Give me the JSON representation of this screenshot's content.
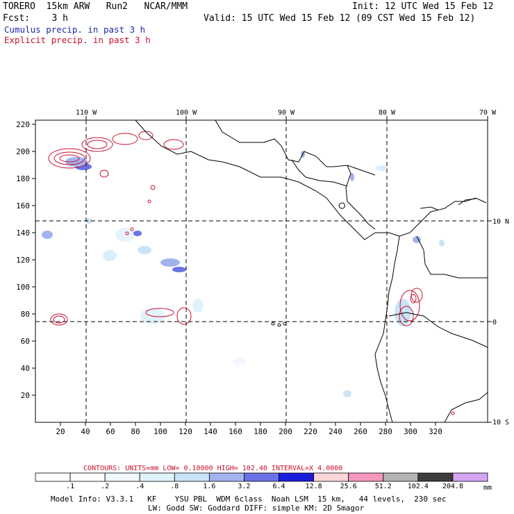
{
  "header": {
    "model": "TORERO  15km ARW   Run2   NCAR/MMM",
    "init": "Init: 12 UTC Wed 15 Feb 12",
    "fcst": "Fcst:    3 h",
    "valid": "Valid: 15 UTC Wed 15 Feb 12 (09 CST Wed 15 Feb 12)"
  },
  "legend": {
    "cumulus": "Cumulus precip. in past 3 h",
    "explicit": "Explicit precip. in past 3 h",
    "cumulus_color": "#1f2aa8",
    "explicit_color": "#c8102e"
  },
  "map": {
    "x_ticks": [
      "20",
      "40",
      "60",
      "80",
      "100",
      "120",
      "140",
      "160",
      "180",
      "200",
      "220",
      "240",
      "260",
      "280",
      "300",
      "320"
    ],
    "y_ticks": [
      "20",
      "40",
      "60",
      "80",
      "100",
      "120",
      "140",
      "160",
      "180",
      "200",
      "220"
    ],
    "lon_labels": [
      "110 W",
      "100 W",
      "90 W",
      "80 W",
      "70 W"
    ],
    "lat_labels": [
      "10 N",
      "0",
      "10 S"
    ]
  },
  "contours": {
    "caption": "CONTOURS:  UNITS=mm  LOW= 0.10000     HIGH=  102.40    INTERVAL=X  4.0000"
  },
  "colorbar": {
    "labels": [
      ".1",
      ".2",
      ".4",
      ".8",
      "1.6",
      "3.2",
      "6.4",
      "12.8",
      "25.6",
      "51.2",
      "102.4",
      "204.8"
    ],
    "unit": "mm",
    "colors": [
      "#ffffff",
      "#ffffff",
      "#f0f7ff",
      "#e2f2fb",
      "#c9e4f6",
      "#a3b3ee",
      "#6a73e6",
      "#1b1ddd",
      "#fbd7d7",
      "#f597bf",
      "#b3b3b3",
      "#3c3c3c",
      "#d3a5f3"
    ]
  },
  "footer": {
    "line1": "Model Info: V3.3.1   KF    YSU PBL  WDM 6class  Noah LSM  15 km,   44 levels,  230 sec",
    "line2": "LW: Godd SW: Goddard DIFF: simple KM: 2D Smagor"
  }
}
